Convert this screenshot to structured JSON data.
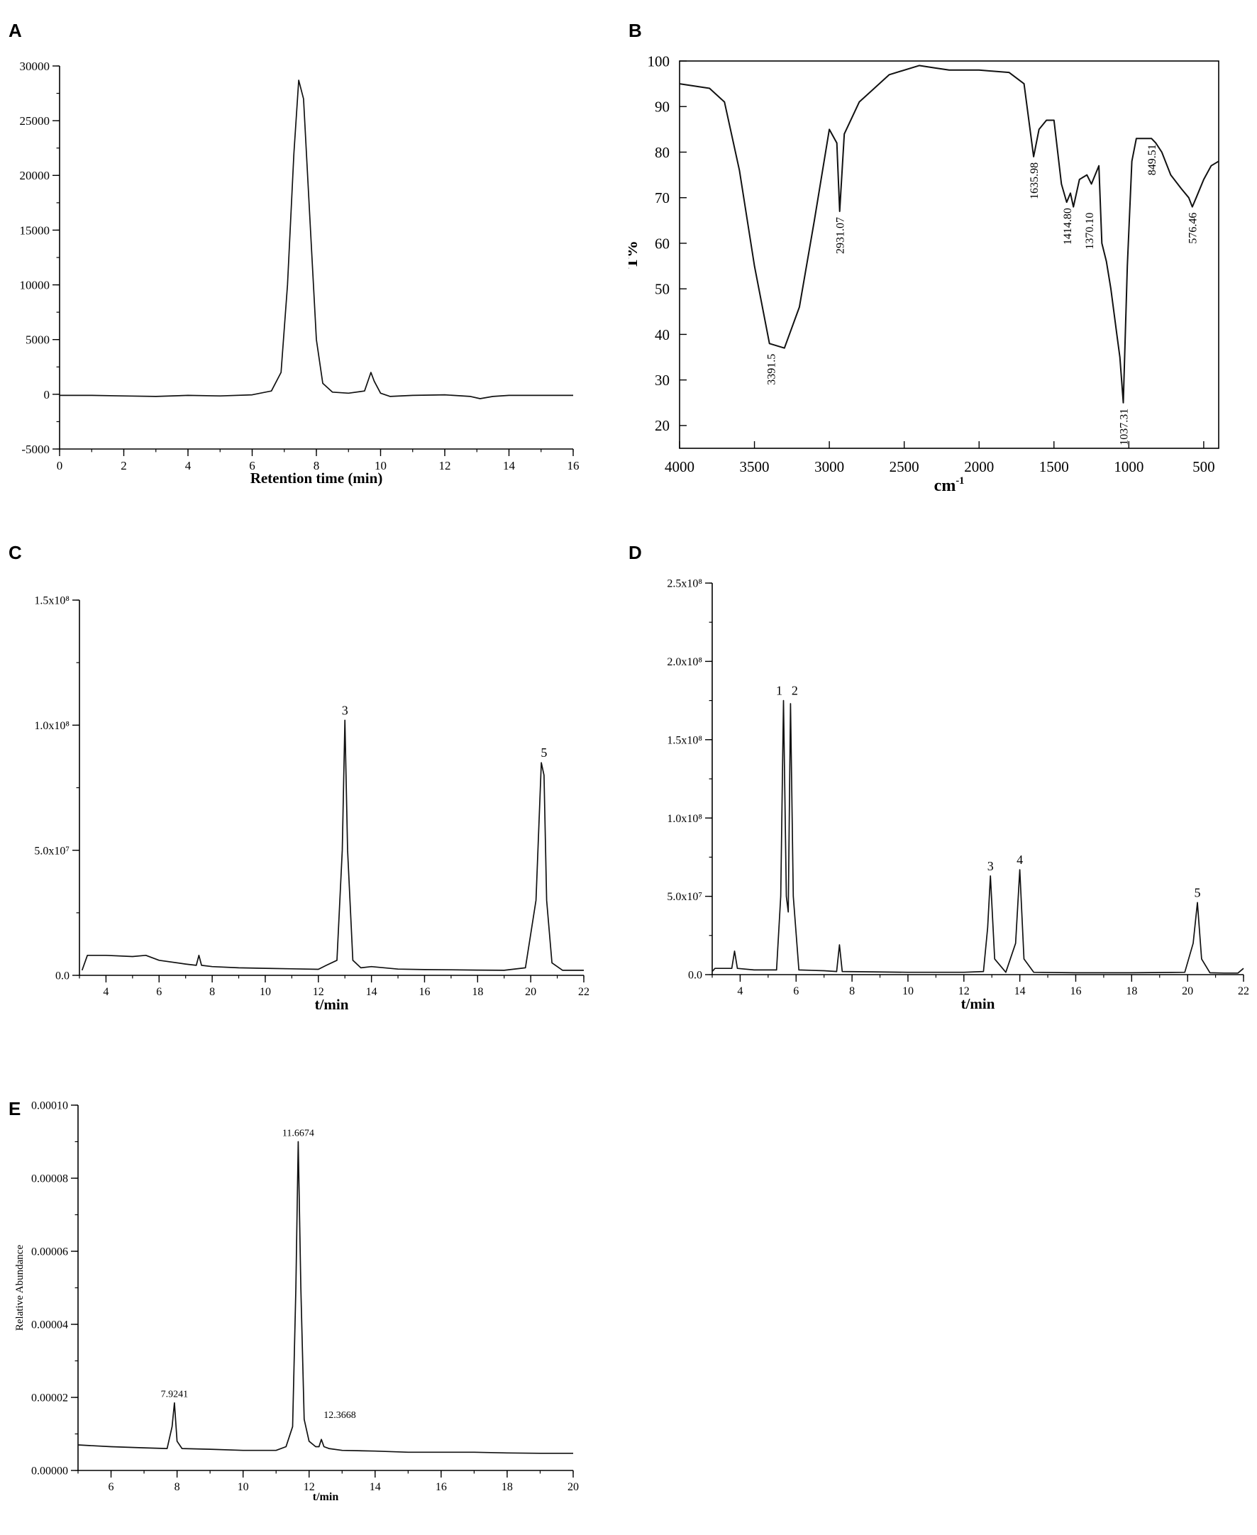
{
  "panels": [
    {
      "letter": "A",
      "chart_data": {
        "type": "line",
        "title": "",
        "xlabel": "Retention time (min)",
        "ylabel": "",
        "xlim": [
          0,
          16
        ],
        "ylim": [
          -5000,
          30000
        ],
        "xticks": [
          "0",
          "2",
          "4",
          "6",
          "8",
          "10",
          "12",
          "14",
          "16"
        ],
        "yticks": [
          "-5000",
          "0",
          "5000",
          "10000",
          "15000",
          "20000",
          "25000",
          "30000"
        ],
        "grid": false,
        "series": [
          {
            "x": [
              0,
              1,
              2,
              3,
              4,
              5,
              6,
              6.6,
              6.9,
              7.1,
              7.3,
              7.45,
              7.6,
              7.8,
              8.0,
              8.2,
              8.5,
              9.0,
              9.5,
              9.7,
              9.8,
              10.0,
              10.3,
              11,
              12,
              12.8,
              13.1,
              13.5,
              14,
              15,
              16
            ],
            "y": [
              -100,
              -100,
              -150,
              -200,
              -100,
              -150,
              -50,
              300,
              2000,
              10000,
              22000,
              28700,
              27000,
              16000,
              5000,
              1000,
              200,
              100,
              300,
              2000,
              1200,
              100,
              -200,
              -100,
              -50,
              -200,
              -400,
              -200,
              -100,
              -100,
              -100
            ]
          }
        ]
      }
    },
    {
      "letter": "B",
      "chart_data": {
        "type": "line",
        "title": "",
        "xlabel": "cm",
        "xlabel_sup": "-1",
        "ylabel": "T%",
        "xlim": [
          4000,
          400
        ],
        "ylim": [
          15,
          100
        ],
        "xticks": [
          "4000",
          "3500",
          "3000",
          "2500",
          "2000",
          "1500",
          "1000",
          "500"
        ],
        "yticks": [
          "20",
          "30",
          "40",
          "50",
          "60",
          "70",
          "80",
          "90",
          "100"
        ],
        "grid": false,
        "annotations": [
          "3391.5",
          "2931.07",
          "1635.98",
          "1414.80",
          "1370.10",
          "1037.31",
          "849.51",
          "576.46"
        ],
        "series": [
          {
            "x": [
              4000,
              3800,
              3700,
              3600,
              3500,
              3400,
              3300,
              3200,
              3100,
              3000,
              2950,
              2931,
              2900,
              2800,
              2600,
              2400,
              2300,
              2200,
              2000,
              1800,
              1700,
              1636,
              1600,
              1550,
              1500,
              1450,
              1415,
              1390,
              1370,
              1330,
              1280,
              1250,
              1200,
              1180,
              1150,
              1120,
              1080,
              1060,
              1037,
              1010,
              980,
              950,
              900,
              849,
              820,
              780,
              720,
              650,
              600,
              576,
              550,
              500,
              450,
              400
            ],
            "y": [
              95,
              94,
              91,
              76,
              55,
              38,
              37,
              46,
              65,
              85,
              82,
              67,
              84,
              91,
              97,
              99,
              98.5,
              98,
              98,
              97.5,
              95,
              79,
              85,
              87,
              87,
              73,
              69,
              71,
              68,
              74,
              75,
              73,
              77,
              60,
              56,
              50,
              40,
              35,
              25,
              55,
              78,
              83,
              83,
              83,
              82,
              80,
              75,
              72,
              70,
              68,
              70,
              74,
              77,
              78
            ]
          }
        ]
      }
    },
    {
      "letter": "C",
      "chart_data": {
        "type": "line",
        "title": "",
        "xlabel": "t/min",
        "ylabel": "",
        "xlim": [
          3,
          22
        ],
        "ylim": [
          0,
          150000000.0
        ],
        "xticks": [
          "4",
          "6",
          "8",
          "10",
          "12",
          "14",
          "16",
          "18",
          "20",
          "22"
        ],
        "yticks": [
          "0.0",
          "5.0x10⁷",
          "1.0x10⁸",
          "1.5x10⁸"
        ],
        "grid": false,
        "annotations": [
          "3",
          "5"
        ],
        "series": [
          {
            "x": [
              3.1,
              3.3,
              4,
              5,
              5.5,
              6,
              7,
              7.4,
              7.5,
              7.6,
              8,
              9,
              10,
              11,
              12,
              12.3,
              12.7,
              12.9,
              13.0,
              13.1,
              13.3,
              13.6,
              14,
              15,
              16,
              17,
              18,
              19,
              19.8,
              20.2,
              20.4,
              20.5,
              20.6,
              20.8,
              21.2,
              22
            ],
            "y": [
              2000000.0,
              8000000.0,
              8000000.0,
              7500000.0,
              8000000.0,
              6000000.0,
              4500000.0,
              4000000.0,
              8000000.0,
              4000000.0,
              3500000.0,
              3000000.0,
              2800000.0,
              2600000.0,
              2400000.0,
              4000000.0,
              6000000.0,
              50000000.0,
              102000000.0,
              50000000.0,
              6000000.0,
              3000000.0,
              3500000.0,
              2500000.0,
              2300000.0,
              2200000.0,
              2100000.0,
              2000000.0,
              3000000.0,
              30000000.0,
              85000000.0,
              80000000.0,
              30000000.0,
              5000000.0,
              2000000.0,
              2000000.0
            ]
          }
        ]
      }
    },
    {
      "letter": "D",
      "chart_data": {
        "type": "line",
        "title": "",
        "xlabel": "t/min",
        "ylabel": "",
        "xlim": [
          3,
          22
        ],
        "ylim": [
          0,
          250000000.0
        ],
        "xticks": [
          "4",
          "6",
          "8",
          "10",
          "12",
          "14",
          "16",
          "18",
          "20",
          "22"
        ],
        "yticks": [
          "0.0",
          "5.0x10⁷",
          "1.0x10⁸",
          "1.5x10⁸",
          "2.0x10⁸",
          "2.5x10⁸"
        ],
        "grid": false,
        "annotations": [
          "1",
          "2",
          "3",
          "4",
          "5"
        ],
        "series": [
          {
            "x": [
              3.0,
              3.1,
              3.7,
              3.8,
              3.9,
              4.5,
              5.3,
              5.45,
              5.55,
              5.65,
              5.72,
              5.8,
              5.9,
              6.1,
              7,
              7.45,
              7.55,
              7.65,
              8.5,
              10,
              12,
              12.7,
              12.85,
              12.95,
              13.1,
              13.5,
              13.85,
              14.0,
              14.15,
              14.5,
              16,
              18,
              19.9,
              20.2,
              20.35,
              20.5,
              20.8,
              21.3,
              21.8,
              22
            ],
            "y": [
              2000000.0,
              4000000.0,
              4000000.0,
              15000000.0,
              4000000.0,
              3000000.0,
              3000000.0,
              50000000.0,
              175000000.0,
              50000000.0,
              40000000.0,
              173000000.0,
              50000000.0,
              3000000.0,
              2500000.0,
              2000000.0,
              19000000.0,
              2000000.0,
              1800000.0,
              1500000.0,
              1500000.0,
              2000000.0,
              30000000.0,
              63000000.0,
              10000000.0,
              1500000.0,
              20000000.0,
              67000000.0,
              10000000.0,
              1500000.0,
              1200000.0,
              1200000.0,
              1500000.0,
              20000000.0,
              46000000.0,
              10000000.0,
              1200000.0,
              1000000.0,
              1000000.0,
              4000000.0
            ]
          }
        ]
      }
    },
    {
      "letter": "E",
      "chart_data": {
        "type": "line",
        "title": "",
        "xlabel": "t/min",
        "ylabel": "Relative Abundance",
        "xlim": [
          5,
          20
        ],
        "ylim": [
          0,
          0.0001
        ],
        "xticks": [
          "6",
          "8",
          "10",
          "12",
          "14",
          "16",
          "18",
          "20"
        ],
        "yticks": [
          "0.00000",
          "0.00002",
          "0.00004",
          "0.00006",
          "0.00008",
          "0.00010"
        ],
        "grid": false,
        "annotations": [
          "7.9241",
          "11.6674",
          "12.3668"
        ],
        "series": [
          {
            "x": [
              5,
              6,
              7,
              7.7,
              7.85,
              7.92,
              8.0,
              8.15,
              9,
              10,
              11,
              11.3,
              11.5,
              11.6,
              11.67,
              11.75,
              11.85,
              12.0,
              12.2,
              12.3,
              12.37,
              12.45,
              12.6,
              13,
              14,
              15,
              16,
              17,
              18,
              19,
              20
            ],
            "y": [
              7e-06,
              6.5e-06,
              6.2e-06,
              6e-06,
              1.2e-05,
              1.85e-05,
              8e-06,
              6e-06,
              5.8e-06,
              5.5e-06,
              5.5e-06,
              6.5e-06,
              1.2e-05,
              5e-05,
              9e-05,
              5e-05,
              1.4e-05,
              8e-06,
              6.5e-06,
              6.5e-06,
              8.5e-06,
              6.5e-06,
              6e-06,
              5.5e-06,
              5.3e-06,
              5e-06,
              5e-06,
              5e-06,
              4.8e-06,
              4.7e-06,
              4.7e-06
            ]
          }
        ]
      }
    }
  ]
}
